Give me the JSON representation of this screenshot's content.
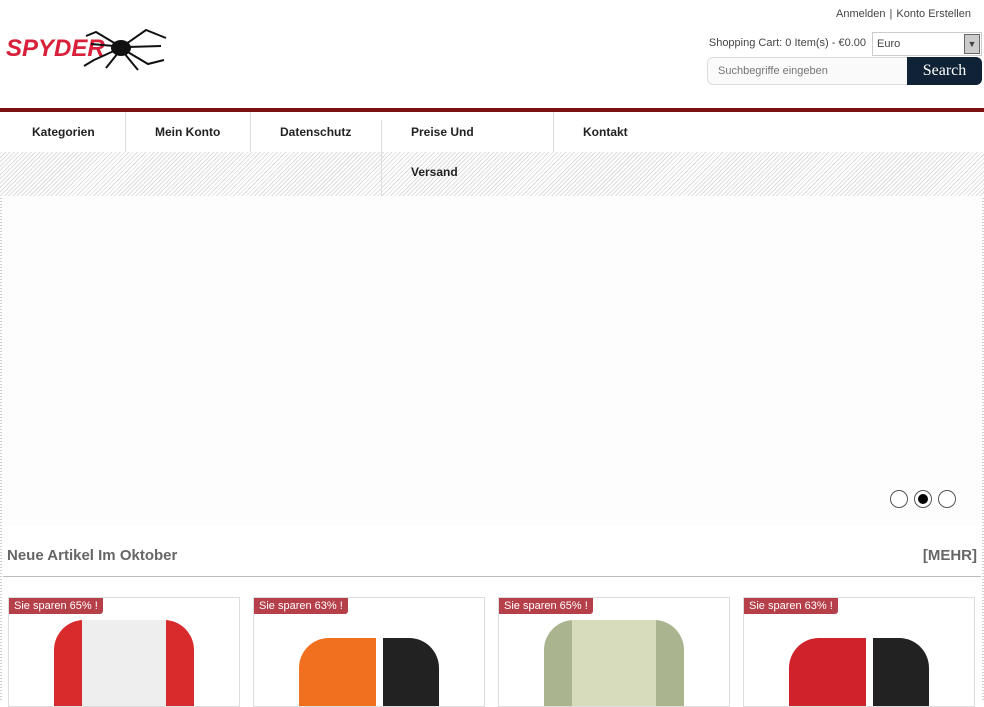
{
  "header": {
    "login": "Anmelden",
    "divider": "|",
    "register": "Konto Erstellen",
    "cart": "Shopping Cart: 0 Item(s)  -  €0.00",
    "currency": "Euro",
    "search_placeholder": "Suchbegriffe eingeben",
    "search_button": "Search",
    "logo_text": "SPYDER"
  },
  "nav": {
    "items": [
      "Kategorien",
      "Mein Konto",
      "Datenschutz",
      "Preise Und",
      "Versand",
      "Kontakt"
    ]
  },
  "slider": {
    "dots": 3,
    "active": 1
  },
  "section": {
    "title": "Neue Artikel Im Oktober",
    "more": "[MEHR]"
  },
  "products": [
    {
      "badge": "Sie sparen 65% !",
      "color": "#d92b2b"
    },
    {
      "badge": "Sie sparen 63% !",
      "color": "#f07020"
    },
    {
      "badge": "Sie sparen 65% !",
      "color": "#c9d4a8"
    },
    {
      "badge": "Sie sparen 63% !",
      "color": "#d0222a"
    }
  ]
}
